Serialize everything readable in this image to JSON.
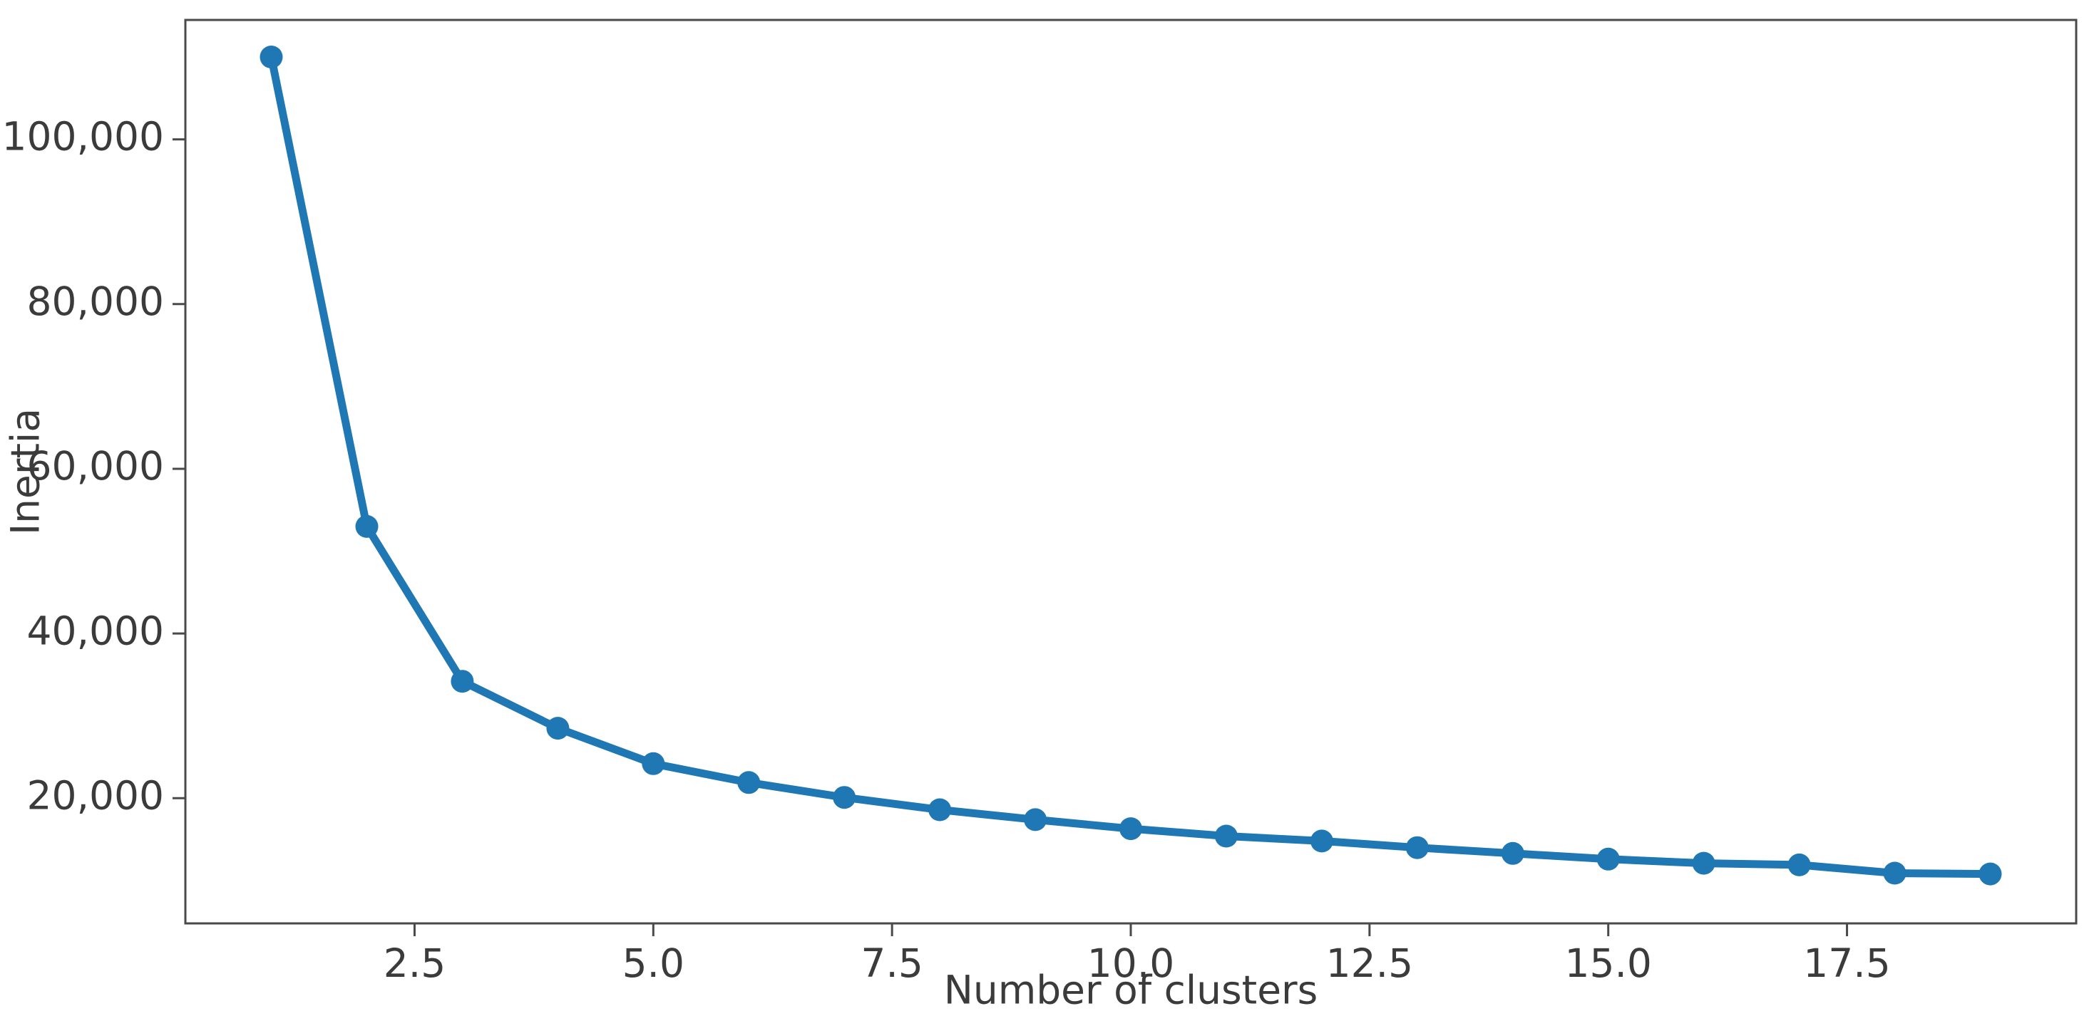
{
  "figure": {
    "background_color": "#ffffff"
  },
  "chart_data": {
    "type": "line",
    "title": "",
    "xlabel": "Number of clusters",
    "ylabel": "Inertia",
    "x": [
      1,
      2,
      3,
      4,
      5,
      6,
      7,
      8,
      9,
      10,
      11,
      12,
      13,
      14,
      15,
      16,
      17,
      18,
      19
    ],
    "y": [
      110000,
      53000,
      34200,
      28500,
      24200,
      21900,
      20100,
      18600,
      17400,
      16300,
      15400,
      14800,
      14000,
      13300,
      12600,
      12100,
      11900,
      10900,
      10800
    ],
    "series_name": "Inertia",
    "xlim": [
      0.1,
      19.9
    ],
    "ylim": [
      4800,
      114500
    ],
    "xticks": [
      {
        "value": 2.5,
        "label": "2.5"
      },
      {
        "value": 5.0,
        "label": "5.0"
      },
      {
        "value": 7.5,
        "label": "7.5"
      },
      {
        "value": 10.0,
        "label": "10.0"
      },
      {
        "value": 12.5,
        "label": "12.5"
      },
      {
        "value": 15.0,
        "label": "15.0"
      },
      {
        "value": 17.5,
        "label": "17.5"
      }
    ],
    "yticks": [
      {
        "value": 20000,
        "label": "20,000"
      },
      {
        "value": 40000,
        "label": "40,000"
      },
      {
        "value": 60000,
        "label": "60,000"
      },
      {
        "value": 80000,
        "label": "80,000"
      },
      {
        "value": 100000,
        "label": "100,000"
      }
    ],
    "grid": false,
    "legend": "none",
    "marker": "o",
    "colors": {
      "line": "#1f77b4",
      "marker": "#1f77b4",
      "spine": "#4a4a4a",
      "tick_text": "#3b3b3b"
    }
  }
}
